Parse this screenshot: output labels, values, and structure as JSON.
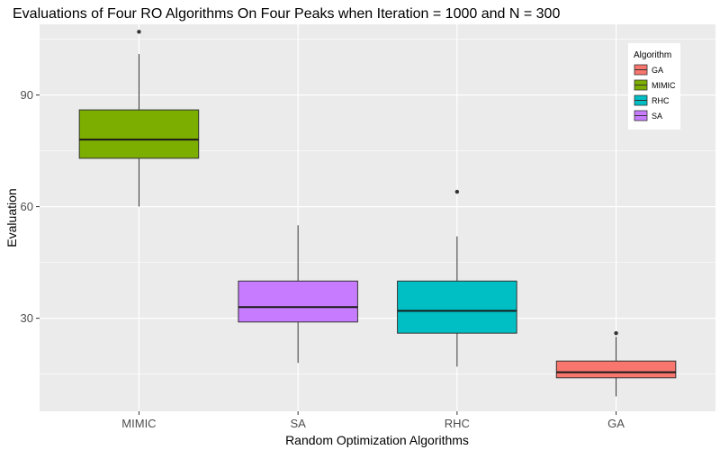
{
  "chart_data": {
    "type": "boxplot",
    "title": "Evaluations of Four RO Algorithms On Four Peaks when Iteration = 1000 and N = 300",
    "xlabel": "Random Optimization Algorithms",
    "ylabel": "Evaluation",
    "categories": [
      "MIMIC",
      "SA",
      "RHC",
      "GA"
    ],
    "ylim": [
      5,
      109
    ],
    "yticks": [
      30,
      60,
      90
    ],
    "grid": true,
    "legend": {
      "title": "Algorithm",
      "position": "top-right",
      "entries": [
        "GA",
        "MIMIC",
        "RHC",
        "SA"
      ]
    },
    "colors": {
      "GA": "#F8766D",
      "MIMIC": "#7CAE00",
      "RHC": "#00BFC4",
      "SA": "#C77CFF",
      "panel": "#EBEBEB",
      "grid": "#FFFFFF"
    },
    "boxes": [
      {
        "category": "MIMIC",
        "whisker_low": 60,
        "q1": 73,
        "median": 78,
        "q3": 86,
        "whisker_high": 101,
        "outliers": [
          107
        ]
      },
      {
        "category": "SA",
        "whisker_low": 18,
        "q1": 29,
        "median": 33,
        "q3": 40,
        "whisker_high": 55,
        "outliers": []
      },
      {
        "category": "RHC",
        "whisker_low": 17,
        "q1": 26,
        "median": 32,
        "q3": 40,
        "whisker_high": 52,
        "outliers": [
          64
        ]
      },
      {
        "category": "GA",
        "whisker_low": 9,
        "q1": 14,
        "median": 15.5,
        "q3": 18.5,
        "whisker_high": 25,
        "outliers": [
          26
        ]
      }
    ]
  }
}
